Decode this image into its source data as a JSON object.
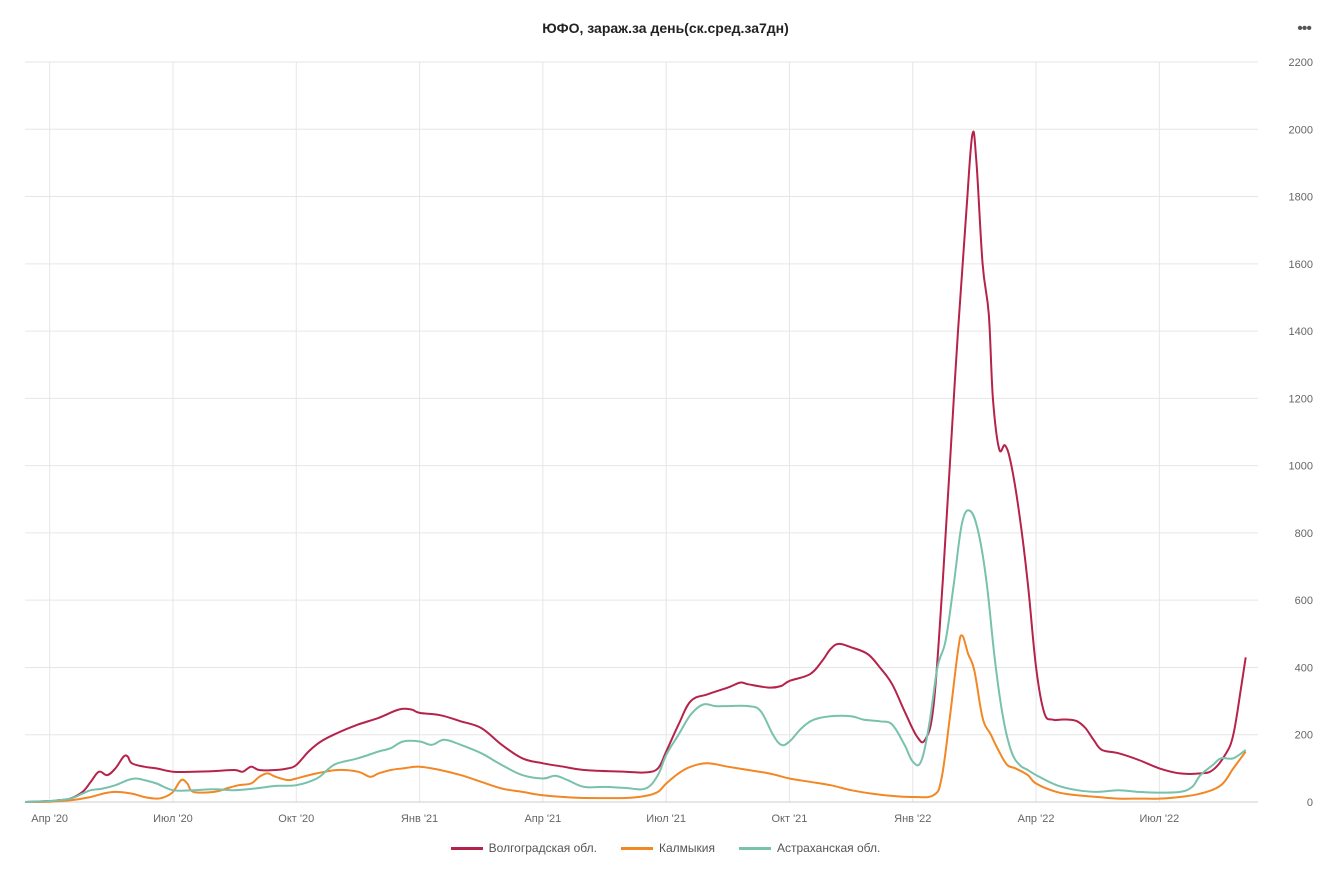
{
  "title": "ЮФО, зараж.за день(ск.сред.за7дн)",
  "menu_icon": "more-horizontal-icon",
  "chart_data": {
    "type": "line",
    "title": "ЮФО, зараж.за день(ск.сред.за7дн)",
    "xlabel": "",
    "ylabel": "",
    "ylim": [
      0,
      2200
    ],
    "yticks": [
      0,
      200,
      400,
      600,
      800,
      1000,
      1200,
      1400,
      1600,
      1800,
      2000,
      2200
    ],
    "xticks": [
      {
        "label": "Апр '20",
        "x": 1
      },
      {
        "label": "Июл '20",
        "x": 4
      },
      {
        "label": "Окт '20",
        "x": 7
      },
      {
        "label": "Янв '21",
        "x": 10
      },
      {
        "label": "Апр '21",
        "x": 13
      },
      {
        "label": "Июл '21",
        "x": 16
      },
      {
        "label": "Окт '21",
        "x": 19
      },
      {
        "label": "Янв '22",
        "x": 22
      },
      {
        "label": "Апр '22",
        "x": 25
      },
      {
        "label": "Июл '22",
        "x": 28
      }
    ],
    "xlim": [
      0.4,
      30.4
    ],
    "grid": true,
    "legend_position": "bottom",
    "series": [
      {
        "name": "Волгоградская обл.",
        "color": "#b5234a",
        "points": [
          [
            0.4,
            0
          ],
          [
            1.0,
            3
          ],
          [
            1.2,
            5
          ],
          [
            1.5,
            10
          ],
          [
            1.8,
            30
          ],
          [
            2.0,
            60
          ],
          [
            2.2,
            90
          ],
          [
            2.4,
            80
          ],
          [
            2.6,
            100
          ],
          [
            2.8,
            135
          ],
          [
            2.9,
            135
          ],
          [
            3.0,
            115
          ],
          [
            3.3,
            105
          ],
          [
            3.6,
            100
          ],
          [
            4.0,
            90
          ],
          [
            4.5,
            90
          ],
          [
            5.0,
            92
          ],
          [
            5.5,
            95
          ],
          [
            5.7,
            90
          ],
          [
            5.9,
            105
          ],
          [
            6.1,
            95
          ],
          [
            6.5,
            95
          ],
          [
            6.8,
            100
          ],
          [
            7.0,
            110
          ],
          [
            7.3,
            150
          ],
          [
            7.6,
            180
          ],
          [
            8.0,
            205
          ],
          [
            8.5,
            230
          ],
          [
            9.0,
            250
          ],
          [
            9.5,
            275
          ],
          [
            9.8,
            275
          ],
          [
            10.0,
            265
          ],
          [
            10.5,
            258
          ],
          [
            11.0,
            240
          ],
          [
            11.5,
            220
          ],
          [
            12.0,
            170
          ],
          [
            12.5,
            130
          ],
          [
            13.0,
            115
          ],
          [
            13.5,
            105
          ],
          [
            14.0,
            95
          ],
          [
            15.0,
            90
          ],
          [
            15.5,
            88
          ],
          [
            15.8,
            100
          ],
          [
            16.0,
            150
          ],
          [
            16.3,
            230
          ],
          [
            16.6,
            300
          ],
          [
            17.0,
            320
          ],
          [
            17.5,
            340
          ],
          [
            17.8,
            355
          ],
          [
            18.0,
            350
          ],
          [
            18.5,
            340
          ],
          [
            18.8,
            345
          ],
          [
            19.0,
            360
          ],
          [
            19.5,
            380
          ],
          [
            19.8,
            420
          ],
          [
            20.0,
            455
          ],
          [
            20.2,
            470
          ],
          [
            20.5,
            460
          ],
          [
            20.9,
            440
          ],
          [
            21.2,
            400
          ],
          [
            21.5,
            350
          ],
          [
            21.8,
            270
          ],
          [
            22.1,
            195
          ],
          [
            22.3,
            185
          ],
          [
            22.5,
            280
          ],
          [
            22.7,
            600
          ],
          [
            22.9,
            1000
          ],
          [
            23.1,
            1400
          ],
          [
            23.3,
            1750
          ],
          [
            23.45,
            1985
          ],
          [
            23.55,
            1900
          ],
          [
            23.7,
            1600
          ],
          [
            23.85,
            1450
          ],
          [
            23.95,
            1200
          ],
          [
            24.1,
            1050
          ],
          [
            24.25,
            1060
          ],
          [
            24.4,
            1000
          ],
          [
            24.6,
            850
          ],
          [
            24.8,
            650
          ],
          [
            25.0,
            400
          ],
          [
            25.2,
            265
          ],
          [
            25.4,
            245
          ],
          [
            25.6,
            245
          ],
          [
            25.8,
            245
          ],
          [
            26.0,
            240
          ],
          [
            26.2,
            220
          ],
          [
            26.4,
            185
          ],
          [
            26.6,
            155
          ],
          [
            27.0,
            145
          ],
          [
            27.5,
            125
          ],
          [
            28.0,
            100
          ],
          [
            28.5,
            85
          ],
          [
            29.0,
            85
          ],
          [
            29.3,
            95
          ],
          [
            29.6,
            140
          ],
          [
            29.8,
            200
          ],
          [
            30.0,
            350
          ],
          [
            30.1,
            430
          ]
        ]
      },
      {
        "name": "Калмыкия",
        "color": "#f28724",
        "points": [
          [
            0.4,
            0
          ],
          [
            1.0,
            1
          ],
          [
            1.5,
            5
          ],
          [
            2.0,
            15
          ],
          [
            2.3,
            25
          ],
          [
            2.6,
            30
          ],
          [
            3.0,
            25
          ],
          [
            3.3,
            15
          ],
          [
            3.6,
            10
          ],
          [
            3.8,
            15
          ],
          [
            4.0,
            30
          ],
          [
            4.2,
            65
          ],
          [
            4.35,
            55
          ],
          [
            4.5,
            30
          ],
          [
            5.0,
            30
          ],
          [
            5.3,
            40
          ],
          [
            5.6,
            50
          ],
          [
            5.9,
            55
          ],
          [
            6.1,
            75
          ],
          [
            6.3,
            85
          ],
          [
            6.5,
            75
          ],
          [
            6.8,
            65
          ],
          [
            7.0,
            70
          ],
          [
            7.5,
            85
          ],
          [
            8.0,
            95
          ],
          [
            8.5,
            90
          ],
          [
            8.8,
            75
          ],
          [
            9.0,
            85
          ],
          [
            9.3,
            95
          ],
          [
            9.6,
            100
          ],
          [
            10.0,
            105
          ],
          [
            10.5,
            95
          ],
          [
            11.0,
            80
          ],
          [
            11.5,
            60
          ],
          [
            12.0,
            40
          ],
          [
            12.5,
            30
          ],
          [
            13.0,
            20
          ],
          [
            13.5,
            15
          ],
          [
            14.0,
            12
          ],
          [
            15.0,
            12
          ],
          [
            15.5,
            18
          ],
          [
            15.8,
            30
          ],
          [
            16.0,
            55
          ],
          [
            16.3,
            85
          ],
          [
            16.6,
            105
          ],
          [
            17.0,
            115
          ],
          [
            17.5,
            105
          ],
          [
            18.0,
            95
          ],
          [
            18.5,
            85
          ],
          [
            19.0,
            70
          ],
          [
            19.5,
            60
          ],
          [
            20.0,
            50
          ],
          [
            20.5,
            35
          ],
          [
            21.0,
            25
          ],
          [
            21.5,
            18
          ],
          [
            22.0,
            15
          ],
          [
            22.5,
            20
          ],
          [
            22.7,
            70
          ],
          [
            22.9,
            250
          ],
          [
            23.1,
            450
          ],
          [
            23.2,
            495
          ],
          [
            23.35,
            440
          ],
          [
            23.5,
            390
          ],
          [
            23.7,
            250
          ],
          [
            23.9,
            200
          ],
          [
            24.1,
            150
          ],
          [
            24.3,
            110
          ],
          [
            24.5,
            100
          ],
          [
            24.8,
            80
          ],
          [
            25.0,
            55
          ],
          [
            25.5,
            30
          ],
          [
            26.0,
            20
          ],
          [
            26.5,
            15
          ],
          [
            27.0,
            10
          ],
          [
            27.5,
            10
          ],
          [
            28.0,
            10
          ],
          [
            28.5,
            15
          ],
          [
            29.0,
            25
          ],
          [
            29.5,
            50
          ],
          [
            29.8,
            100
          ],
          [
            30.1,
            150
          ]
        ]
      },
      {
        "name": "Астраханская обл.",
        "color": "#78c1ad",
        "points": [
          [
            0.4,
            0
          ],
          [
            1.0,
            3
          ],
          [
            1.5,
            10
          ],
          [
            1.8,
            25
          ],
          [
            2.0,
            35
          ],
          [
            2.3,
            40
          ],
          [
            2.6,
            50
          ],
          [
            2.9,
            65
          ],
          [
            3.1,
            70
          ],
          [
            3.3,
            65
          ],
          [
            3.6,
            55
          ],
          [
            4.0,
            35
          ],
          [
            4.5,
            35
          ],
          [
            5.0,
            38
          ],
          [
            5.5,
            35
          ],
          [
            6.0,
            40
          ],
          [
            6.5,
            48
          ],
          [
            7.0,
            50
          ],
          [
            7.5,
            70
          ],
          [
            7.8,
            100
          ],
          [
            8.0,
            115
          ],
          [
            8.5,
            130
          ],
          [
            9.0,
            150
          ],
          [
            9.3,
            160
          ],
          [
            9.6,
            180
          ],
          [
            10.0,
            180
          ],
          [
            10.3,
            170
          ],
          [
            10.6,
            185
          ],
          [
            11.0,
            170
          ],
          [
            11.5,
            145
          ],
          [
            12.0,
            110
          ],
          [
            12.5,
            80
          ],
          [
            13.0,
            70
          ],
          [
            13.3,
            78
          ],
          [
            13.6,
            65
          ],
          [
            14.0,
            45
          ],
          [
            14.5,
            45
          ],
          [
            15.0,
            42
          ],
          [
            15.5,
            40
          ],
          [
            15.8,
            80
          ],
          [
            16.0,
            140
          ],
          [
            16.3,
            200
          ],
          [
            16.6,
            260
          ],
          [
            16.9,
            290
          ],
          [
            17.2,
            285
          ],
          [
            17.5,
            285
          ],
          [
            18.0,
            285
          ],
          [
            18.3,
            270
          ],
          [
            18.6,
            200
          ],
          [
            18.8,
            170
          ],
          [
            19.0,
            180
          ],
          [
            19.3,
            220
          ],
          [
            19.6,
            245
          ],
          [
            20.0,
            255
          ],
          [
            20.5,
            255
          ],
          [
            20.8,
            245
          ],
          [
            21.2,
            240
          ],
          [
            21.5,
            230
          ],
          [
            21.8,
            170
          ],
          [
            22.0,
            120
          ],
          [
            22.2,
            120
          ],
          [
            22.4,
            230
          ],
          [
            22.6,
            400
          ],
          [
            22.8,
            480
          ],
          [
            23.0,
            650
          ],
          [
            23.2,
            830
          ],
          [
            23.4,
            865
          ],
          [
            23.6,
            800
          ],
          [
            23.8,
            650
          ],
          [
            24.0,
            420
          ],
          [
            24.2,
            250
          ],
          [
            24.4,
            150
          ],
          [
            24.6,
            110
          ],
          [
            24.8,
            95
          ],
          [
            25.0,
            80
          ],
          [
            25.5,
            50
          ],
          [
            26.0,
            35
          ],
          [
            26.5,
            30
          ],
          [
            27.0,
            35
          ],
          [
            27.5,
            30
          ],
          [
            28.0,
            28
          ],
          [
            28.5,
            30
          ],
          [
            28.8,
            45
          ],
          [
            29.0,
            80
          ],
          [
            29.3,
            110
          ],
          [
            29.5,
            130
          ],
          [
            29.8,
            130
          ],
          [
            30.1,
            155
          ]
        ]
      }
    ]
  }
}
